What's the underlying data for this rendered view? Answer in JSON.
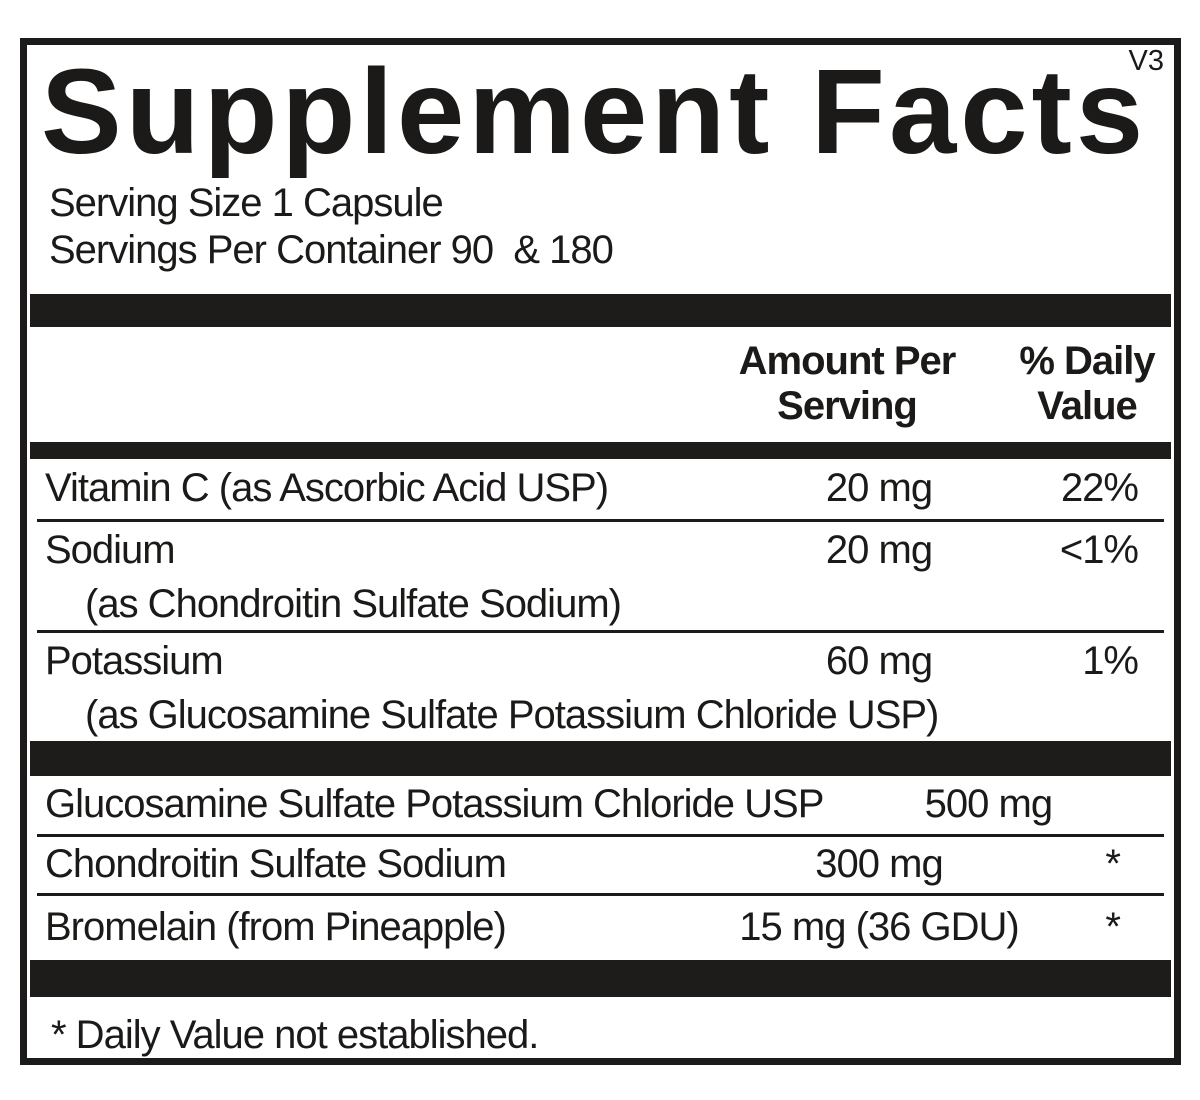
{
  "version_tag": "V3",
  "title": "Supplement Facts",
  "serving": {
    "size_line": "Serving Size 1 Capsule",
    "per_container_line": "Servings Per Container 90  & 180"
  },
  "columns": {
    "amount_line1": "Amount Per",
    "amount_line2": "Serving",
    "dv_line1": "% Daily",
    "dv_line2": "Value"
  },
  "nutrients": [
    {
      "name": "Vitamin C (as Ascorbic Acid USP)",
      "amount": "20 mg",
      "dv": "22%"
    },
    {
      "name": "Sodium",
      "sub": "(as Chondroitin Sulfate Sodium)",
      "amount": "20 mg",
      "dv": "<1%"
    },
    {
      "name": "Potassium",
      "sub": "(as Glucosamine Sulfate Potassium Chloride USP)",
      "amount": "60 mg",
      "dv": "1%"
    }
  ],
  "ingredients": [
    {
      "name": "Glucosamine Sulfate Potassium Chloride USP",
      "amount": "500 mg",
      "dv": "*"
    },
    {
      "name": "Chondroitin Sulfate Sodium",
      "amount": "300 mg",
      "dv": "*"
    },
    {
      "name": "Bromelain (from Pineapple)",
      "amount": "15 mg (36 GDU)",
      "dv": "*"
    }
  ],
  "footnote": "* Daily Value not established.",
  "colors": {
    "ink": "#1b1a18",
    "bar": "#1d1c1a",
    "background": "#ffffff"
  }
}
